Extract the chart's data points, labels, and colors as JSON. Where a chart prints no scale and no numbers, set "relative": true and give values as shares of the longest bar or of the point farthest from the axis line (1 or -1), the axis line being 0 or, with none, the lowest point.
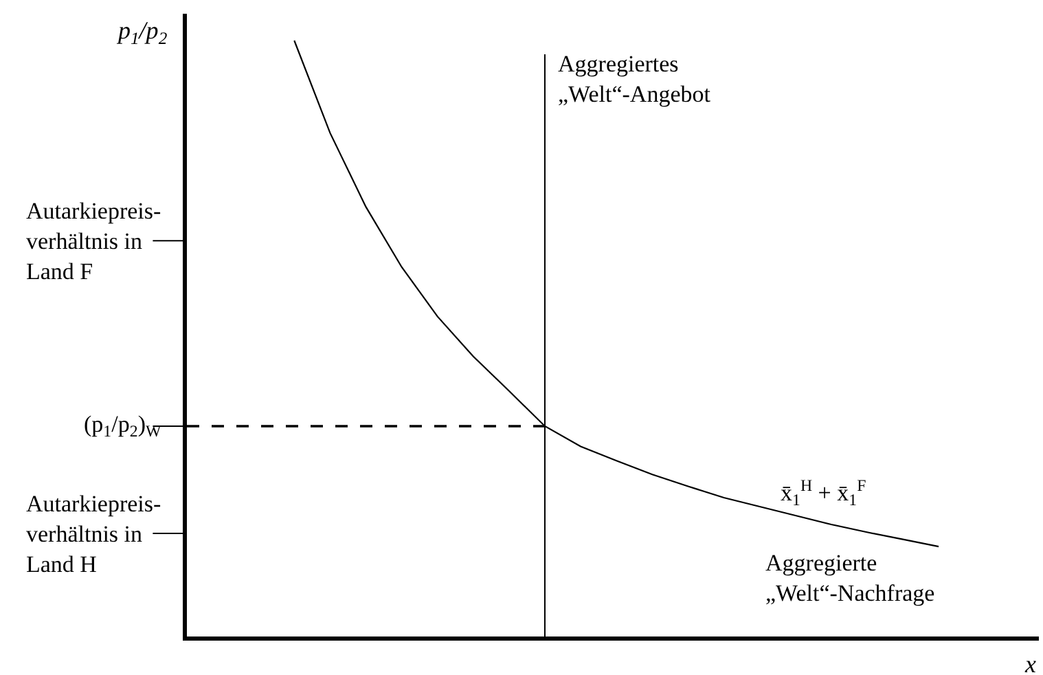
{
  "chart_data": {
    "type": "line",
    "relative": true,
    "legend": false,
    "marker": "none",
    "ylabel": "p$_{1}$/p$_{2}$",
    "xlabel": "x",
    "categories": [
      null,
      null,
      null,
      null,
      null,
      null,
      null,
      null,
      null,
      null,
      null,
      null,
      null,
      null,
      null,
      null,
      null,
      null,
      null,
      null,
      null,
      null,
      null,
      null
    ],
    "series": [
      {
        "color": "#000000",
        "values": [
          null,
          null,
          null,
          1.0,
          0.845,
          0.721,
          0.62,
          0.537,
          0.47,
          0.412,
          0.353,
          0.319,
          0.295,
          0.272,
          0.252,
          0.233,
          0.218,
          0.203,
          0.188,
          0.175,
          0.163,
          0.151,
          null,
          null
        ]
      },
      {
        "color": "#000000",
        "line_style": "dashed",
        "values": [
          0.353,
          0.353,
          0.353,
          0.353,
          0.353,
          0.353,
          0.353,
          0.353,
          0.353,
          0.353,
          0.353,
          null,
          null,
          null,
          null,
          null,
          null,
          null,
          null,
          null,
          null,
          null,
          null,
          null
        ]
      }
    ],
    "annotations": [
      "Autarkiepreis-\nverhältnis in\nLand F",
      "(p$_{1}$/p$_{2}$)$_{W}$",
      "Autarkiepreis-\nverhältnis in\nLand H",
      "Aggregiertes\n„Welt“-Angebot",
      "x̄$_{1}$$^{H}$ + x̄$_{1}$$^{F}$",
      "Aggregierte\n„Welt“-Nachfrage"
    ]
  }
}
